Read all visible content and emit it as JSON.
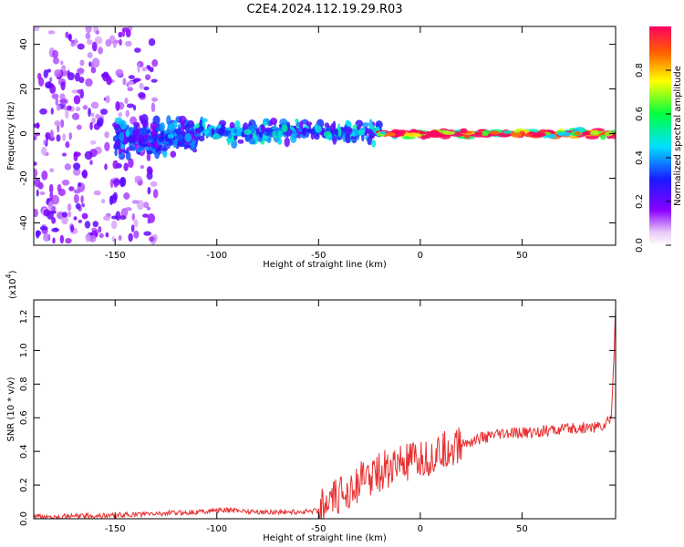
{
  "title": "C2E4.2024.112.19.29.R03",
  "chart_data": [
    {
      "type": "heatmap",
      "xlabel": "Height of straight line (km)",
      "ylabel": "Frequency (Hz)",
      "xlim": [
        -190,
        96
      ],
      "ylim": [
        -50,
        48
      ],
      "xticks": [
        -150,
        -100,
        -50,
        0,
        50
      ],
      "yticks": [
        -40,
        -20,
        0,
        20,
        40
      ],
      "colorbar": {
        "label": "Normalized spectral amplitude",
        "range": [
          0,
          1
        ],
        "ticks": [
          0.0,
          0.2,
          0.4,
          0.6,
          0.8
        ],
        "colormap": "white-purple-blue-cyan-green-yellow-red"
      },
      "bands": [
        {
          "x_range": [
            -190,
            -130
          ],
          "spread_hz": 48,
          "level": 0.15
        },
        {
          "x_range": [
            -150,
            -110
          ],
          "center_hz": -2,
          "spread_hz": 10,
          "level": 0.3
        },
        {
          "x_range": [
            -110,
            -20
          ],
          "center_hz": 1,
          "spread_hz": 6,
          "level": 0.35
        },
        {
          "x_range": [
            -20,
            96
          ],
          "center_hz": 0,
          "spread_hz": 2,
          "level": 0.85
        }
      ]
    },
    {
      "type": "line",
      "xlabel": "Height of straight line (km)",
      "ylabel": "SNR (10 * v/v)",
      "multiplier": "(x10^4)",
      "multiplier_base": "(x10",
      "multiplier_exp": "4",
      "xlim": [
        -190,
        96
      ],
      "ylim": [
        0,
        1.3
      ],
      "xticks": [
        -150,
        -100,
        -50,
        0,
        50
      ],
      "yticks": [
        0.0,
        0.2,
        0.4,
        0.6,
        0.8,
        1.0,
        1.2
      ],
      "line_color": "#e83030",
      "series": [
        {
          "x": [
            -190,
            -170,
            -150,
            -130,
            -110,
            -100,
            -90,
            -80,
            -70,
            -60,
            -50,
            -45,
            -40,
            -35,
            -30,
            -25,
            -20,
            -15,
            -10,
            -5,
            0,
            5,
            10,
            15,
            20,
            25,
            30,
            35,
            40,
            50,
            60,
            70,
            80,
            90,
            94,
            96
          ],
          "values": [
            0.01,
            0.015,
            0.02,
            0.03,
            0.04,
            0.05,
            0.05,
            0.04,
            0.04,
            0.04,
            0.05,
            0.08,
            0.13,
            0.18,
            0.22,
            0.25,
            0.28,
            0.3,
            0.32,
            0.33,
            0.34,
            0.36,
            0.39,
            0.42,
            0.44,
            0.46,
            0.48,
            0.49,
            0.5,
            0.51,
            0.52,
            0.53,
            0.54,
            0.55,
            0.6,
            1.25
          ]
        }
      ]
    }
  ]
}
